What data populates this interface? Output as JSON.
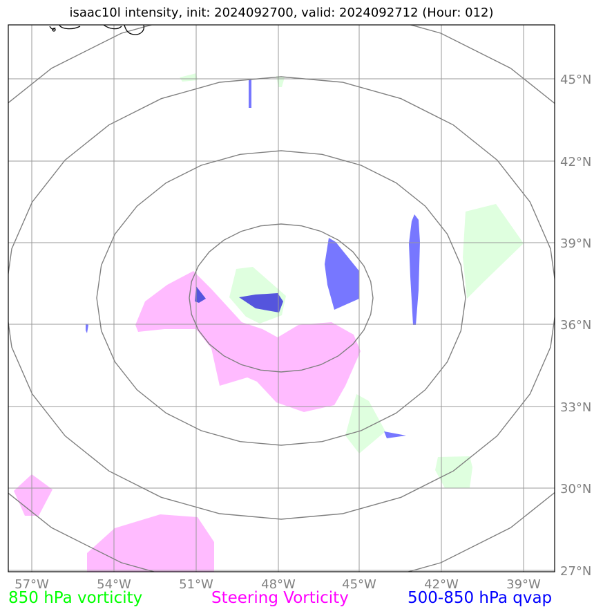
{
  "title": "isaac10l intensity, init: 2024092700, valid: 2024092712 (Hour: 012)",
  "lon_labels": [
    "57°W",
    "54°W",
    "51°W",
    "48°W",
    "45°W",
    "42°W",
    "39°W"
  ],
  "lat_labels": [
    "45°N",
    "42°N",
    "39°N",
    "36°N",
    "33°N",
    "30°N",
    "27°N"
  ],
  "legend": [
    {
      "label": "850 hPa vorticity",
      "color": "#00ff00"
    },
    {
      "label": "Steering Vorticity",
      "color": "#ff00ff"
    },
    {
      "label": "500-850 hPa qvap",
      "color": "#0000ff"
    }
  ],
  "colors": {
    "vorticity_850_fill": "#dfffdf",
    "steering_fill": "#ffbbff",
    "qvap_fill": "#7777ff",
    "qvap_core": "#5555dd",
    "grid": "#999999",
    "range_rings": "#808080",
    "tick_labels": "#808080",
    "coastline": "#000000"
  }
}
